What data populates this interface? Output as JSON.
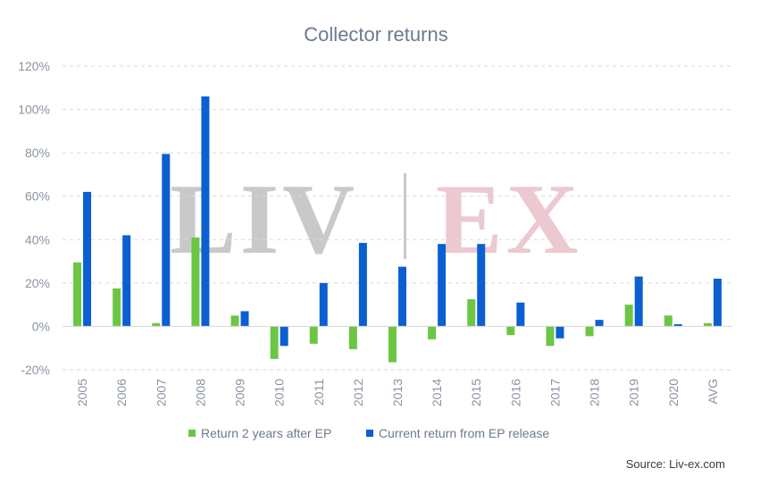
{
  "chart_data": {
    "type": "bar",
    "title": "Collector returns",
    "categories": [
      "2005",
      "2006",
      "2007",
      "2008",
      "2009",
      "2010",
      "2011",
      "2012",
      "2013",
      "2014",
      "2015",
      "2016",
      "2017",
      "2018",
      "2019",
      "2020",
      "AVG"
    ],
    "series": [
      {
        "name": "Return 2 years after EP",
        "color": "#6cc644",
        "values": [
          29.5,
          17.5,
          1.5,
          41,
          5,
          -15,
          -8,
          -10.5,
          -16.5,
          -6,
          12.5,
          -4,
          -9,
          -4.5,
          10,
          5,
          1.5
        ]
      },
      {
        "name": "Current return from EP release",
        "color": "#0a5fd1",
        "values": [
          62,
          42,
          79.5,
          106,
          7,
          -9,
          20,
          38.5,
          27.5,
          38,
          38,
          11,
          -5.5,
          3,
          23,
          1,
          22
        ]
      }
    ],
    "y_tick_labels": [
      "-20%",
      "0%",
      "20%",
      "40%",
      "60%",
      "80%",
      "100%",
      "120%"
    ],
    "y_ticks": [
      -20,
      0,
      20,
      40,
      60,
      80,
      100,
      120
    ],
    "ylim": [
      -20,
      120
    ],
    "grid": true,
    "legend_position": "bottom",
    "source": "Source: Liv-ex.com",
    "watermark": {
      "left": "LIV",
      "right": "EX"
    }
  }
}
